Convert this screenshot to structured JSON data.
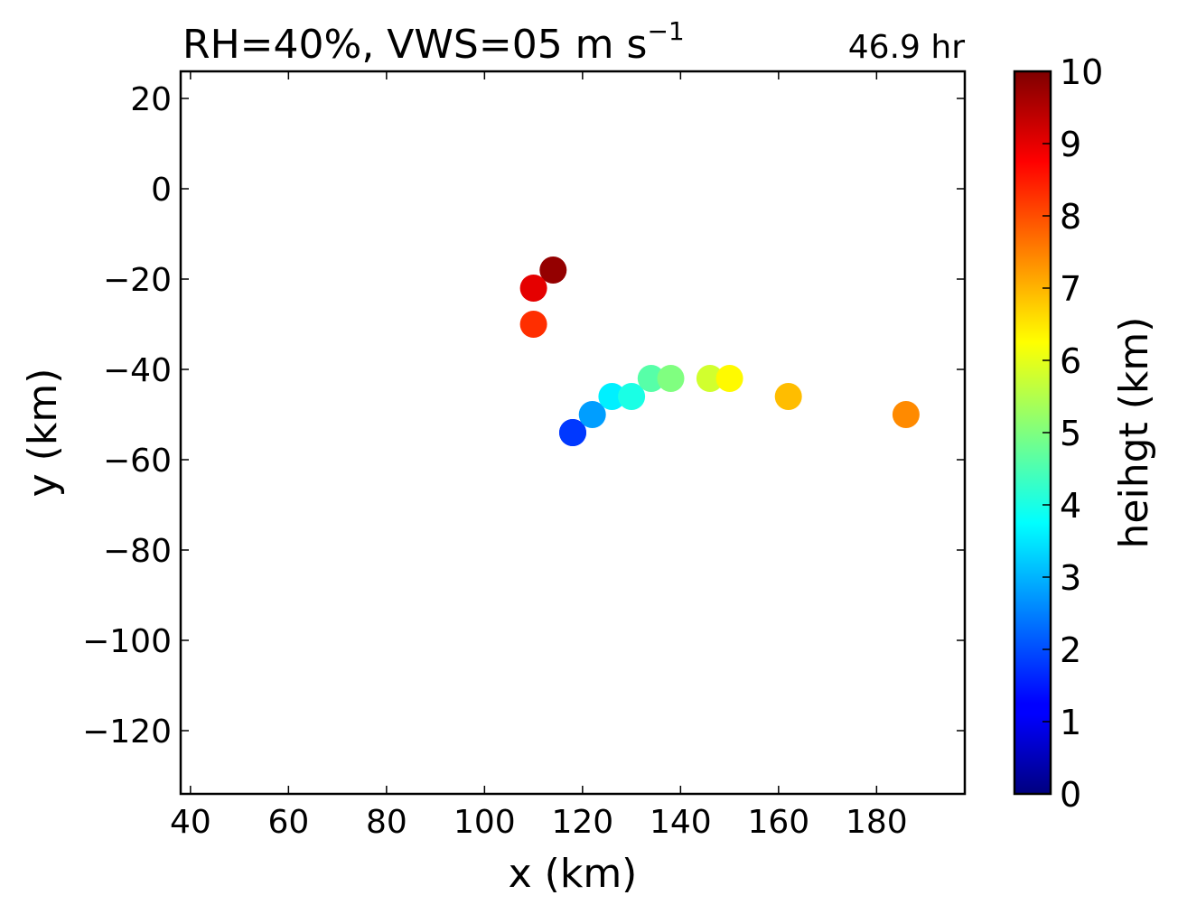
{
  "chart_data": {
    "type": "scatter",
    "title": "RH=40%, VWS=05 m s",
    "title_superscript": "−1",
    "annotation": "46.9 hr",
    "annotation_color": "#0000ee",
    "xlabel": "x (km)",
    "ylabel": "y (km)",
    "xlim": [
      38,
      198
    ],
    "ylim": [
      -134,
      26
    ],
    "xticks": [
      40,
      60,
      80,
      100,
      120,
      140,
      160,
      180
    ],
    "yticks": [
      20,
      0,
      -20,
      -40,
      -60,
      -80,
      -100,
      -120
    ],
    "grid": false,
    "colorbar": {
      "label": "heihgt (km)",
      "colormap": "jet",
      "range": [
        0,
        10
      ],
      "ticks": [
        0,
        1,
        2,
        3,
        4,
        5,
        6,
        7,
        8,
        9,
        10
      ]
    },
    "points": [
      {
        "x": 114,
        "y": -18,
        "height": 9.8
      },
      {
        "x": 110,
        "y": -22,
        "height": 9.0
      },
      {
        "x": 110,
        "y": -30,
        "height": 8.3
      },
      {
        "x": 118,
        "y": -54,
        "height": 1.6
      },
      {
        "x": 118,
        "y": -54,
        "height": 1.8
      },
      {
        "x": 122,
        "y": -50,
        "height": 2.8
      },
      {
        "x": 126,
        "y": -46,
        "height": 3.6
      },
      {
        "x": 130,
        "y": -46,
        "height": 4.0
      },
      {
        "x": 134,
        "y": -42,
        "height": 4.6
      },
      {
        "x": 138,
        "y": -42,
        "height": 5.0
      },
      {
        "x": 146,
        "y": -42,
        "height": 5.8
      },
      {
        "x": 150,
        "y": -42,
        "height": 6.3
      },
      {
        "x": 162,
        "y": -46,
        "height": 6.9
      },
      {
        "x": 186,
        "y": -50,
        "height": 7.4
      }
    ]
  }
}
